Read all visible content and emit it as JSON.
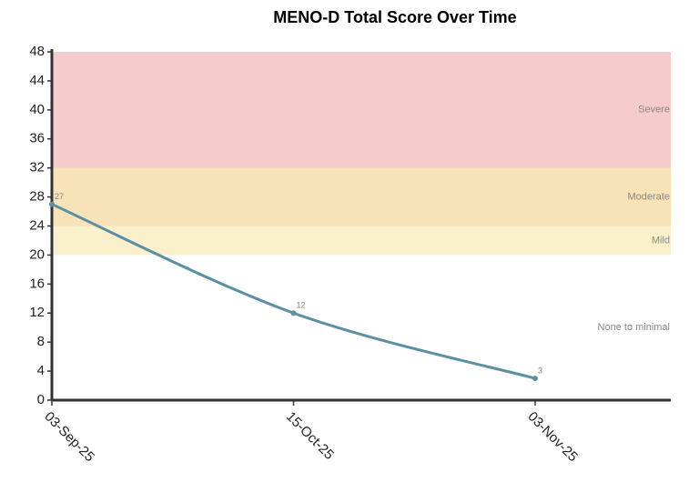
{
  "chart_data": {
    "type": "line",
    "title": "MENO-D Total Score Over Time",
    "categories": [
      "03-Sep-25",
      "15-Oct-25",
      "03-Nov-25"
    ],
    "series": [
      {
        "color": "#5b8fa3",
        "values": [
          27,
          12,
          3
        ]
      }
    ],
    "ylim": [
      0,
      48
    ],
    "yticks": [
      0,
      4,
      8,
      12,
      16,
      20,
      24,
      28,
      32,
      36,
      40,
      44,
      48
    ],
    "bands": [
      {
        "name": "Severe",
        "from": 32,
        "to": 48,
        "color": "#f5cbcc"
      },
      {
        "name": "Moderate",
        "from": 24,
        "to": 32,
        "color": "#f8e2b8"
      },
      {
        "name": "Mild",
        "from": 20,
        "to": 24,
        "color": "#faf0cc"
      },
      {
        "name": "None to minimal",
        "from": 0,
        "to": 20,
        "color": "#ffffff"
      }
    ]
  }
}
